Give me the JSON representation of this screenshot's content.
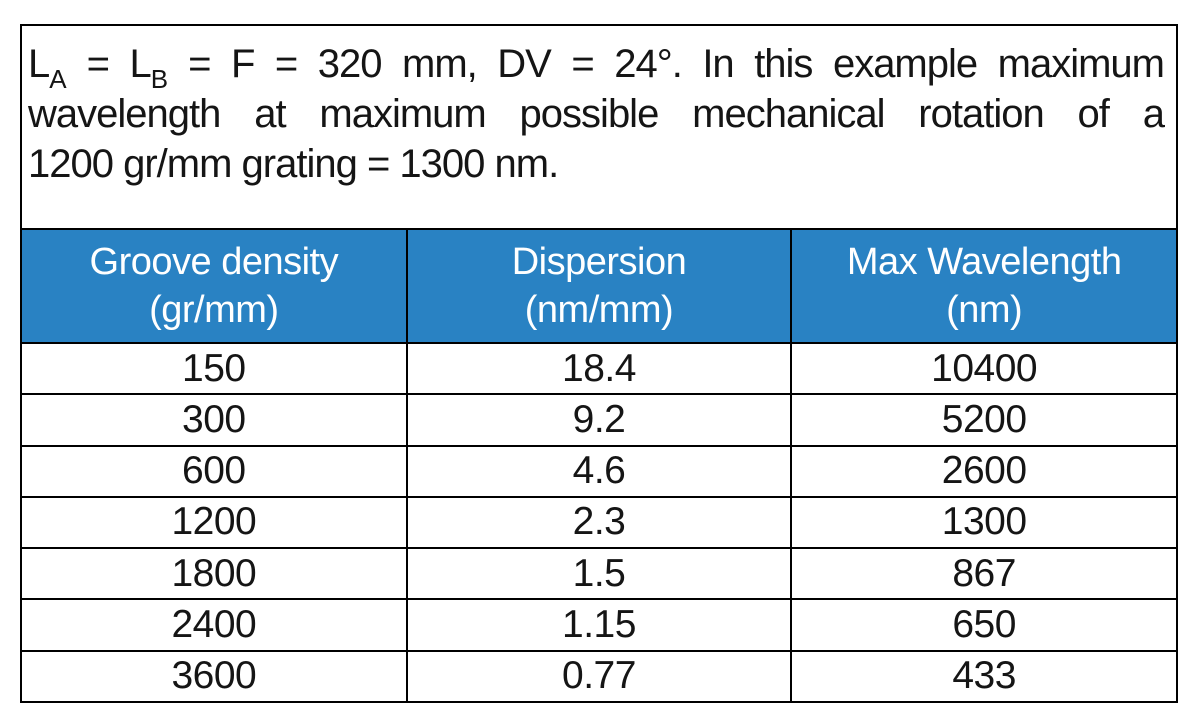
{
  "caption": {
    "full_text": "LA = LB = F = 320 mm, DV = 24°. In this example maximum wavelength at maximum possible mechanical rotation of a 1200 gr/mm grating = 1300 nm.",
    "lines": [
      {
        "justify_last": true,
        "segments": [
          {
            "text": "L"
          },
          {
            "text": "A",
            "sub": true
          },
          {
            "text": " = L"
          },
          {
            "text": "B",
            "sub": true
          },
          {
            "text": " = F = 320 mm, DV = 24°. In this example maximum"
          }
        ]
      },
      {
        "justify_last": true,
        "segments": [
          {
            "text": "wavelength at maximum possible mechanical rotation of a"
          }
        ]
      },
      {
        "justify_last": false,
        "segments": [
          {
            "text": "1200 gr/mm grating = 1300 nm."
          }
        ]
      }
    ]
  },
  "table": {
    "headers": [
      {
        "title": "Groove density",
        "unit": "(gr/mm)"
      },
      {
        "title": "Dispersion",
        "unit": "(nm/mm)"
      },
      {
        "title": "Max Wavelength",
        "unit": "(nm)"
      }
    ],
    "rows": [
      [
        "150",
        "18.4",
        "10400"
      ],
      [
        "300",
        "9.2",
        "5200"
      ],
      [
        "600",
        "4.6",
        "2600"
      ],
      [
        "1200",
        "2.3",
        "1300"
      ],
      [
        "1800",
        "1.5",
        "867"
      ],
      [
        "2400",
        "1.15",
        "650"
      ],
      [
        "3600",
        "0.77",
        "433"
      ]
    ]
  },
  "chart_data": {
    "type": "table",
    "columns": [
      "Groove density (gr/mm)",
      "Dispersion (nm/mm)",
      "Max Wavelength (nm)"
    ],
    "rows": [
      [
        150,
        18.4,
        10400
      ],
      [
        300,
        9.2,
        5200
      ],
      [
        600,
        4.6,
        2600
      ],
      [
        1200,
        2.3,
        1300
      ],
      [
        1800,
        1.5,
        867
      ],
      [
        2400,
        1.15,
        650
      ],
      [
        3600,
        0.77,
        433
      ]
    ]
  },
  "colors": {
    "header_bg": "#2982C3",
    "header_text": "#FFFFFF",
    "body_text": "#151515",
    "border": "#000000"
  }
}
